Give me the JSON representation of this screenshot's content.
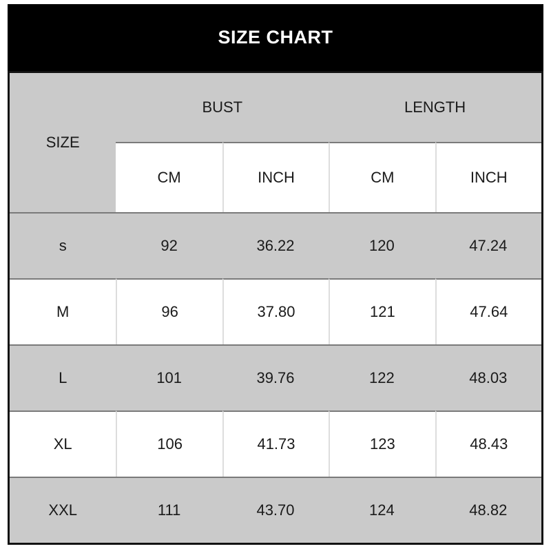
{
  "title": "SIZE CHART",
  "table": {
    "size_header": "SIZE",
    "group_headers": [
      "BUST",
      "LENGTH"
    ],
    "unit_headers": [
      "CM",
      "INCH",
      "CM",
      "INCH"
    ],
    "rows": [
      {
        "size": "s",
        "values": [
          "92",
          "36.22",
          "120",
          "47.24"
        ]
      },
      {
        "size": "M",
        "values": [
          "96",
          "37.80",
          "121",
          "47.64"
        ]
      },
      {
        "size": "L",
        "values": [
          "101",
          "39.76",
          "122",
          "48.03"
        ]
      },
      {
        "size": "XL",
        "values": [
          "106",
          "41.73",
          "123",
          "48.43"
        ]
      },
      {
        "size": "XXL",
        "values": [
          "111",
          "43.70",
          "124",
          "48.82"
        ]
      }
    ]
  },
  "colors": {
    "title_bar_bg": "#000000",
    "title_text": "#ffffff",
    "gray_cell": "#cacaca",
    "white_cell": "#ffffff",
    "row_separator": "#7a7a7a",
    "column_separator": "#dddddd",
    "outer_border": "#121212",
    "cell_text": "#1a1a1a"
  },
  "chart_data": {
    "type": "table",
    "title": "SIZE CHART",
    "columns": [
      "SIZE",
      "BUST CM",
      "BUST INCH",
      "LENGTH CM",
      "LENGTH INCH"
    ],
    "rows": [
      [
        "s",
        92,
        36.22,
        120,
        47.24
      ],
      [
        "M",
        96,
        37.8,
        121,
        47.64
      ],
      [
        "L",
        101,
        39.76,
        122,
        48.03
      ],
      [
        "XL",
        106,
        41.73,
        123,
        48.43
      ],
      [
        "XXL",
        111,
        43.7,
        124,
        48.82
      ]
    ]
  }
}
